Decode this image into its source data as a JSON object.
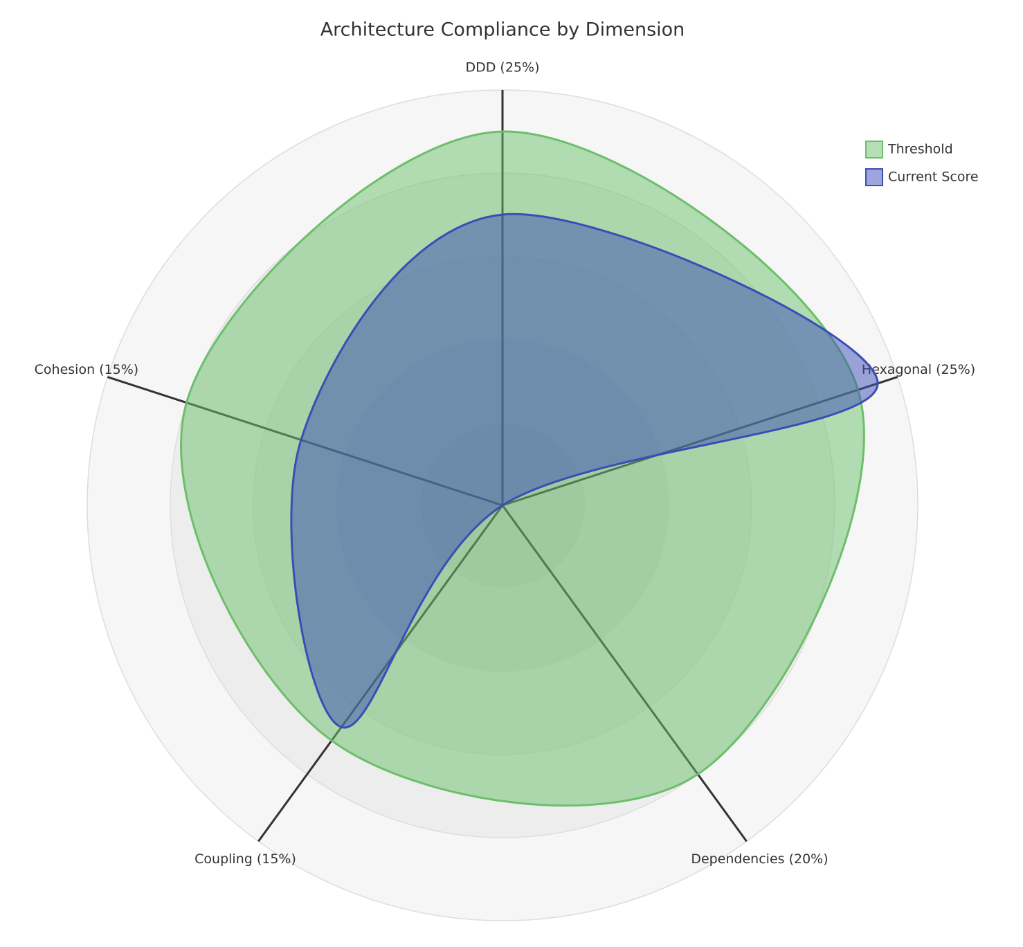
{
  "chart_data": {
    "type": "radar",
    "title": "Architecture Compliance by Dimension",
    "categories": [
      "DDD (25%)",
      "Hexagonal (25%)",
      "Dependencies (20%)",
      "Coupling (15%)",
      "Cohesion (15%)"
    ],
    "ylim": [
      0,
      100
    ],
    "yticks": [
      20,
      40,
      60,
      80,
      100
    ],
    "series": [
      {
        "name": "Threshold",
        "color": "#6cbf6a",
        "values": [
          90,
          90,
          80,
          70,
          80
        ]
      },
      {
        "name": "Current Score",
        "color": "#3a4db5",
        "values": [
          70,
          95,
          0,
          66,
          51
        ]
      }
    ]
  }
}
